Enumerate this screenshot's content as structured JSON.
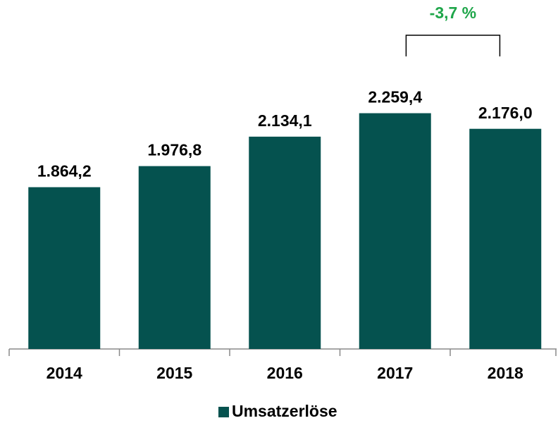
{
  "chart_data": {
    "type": "bar",
    "categories": [
      "2014",
      "2015",
      "2016",
      "2017",
      "2018"
    ],
    "series": [
      {
        "name": "Umsatzerlöse",
        "color": "#05524f",
        "values": [
          1864.2,
          1976.8,
          2134.1,
          2259.4,
          2176.0
        ],
        "value_labels": [
          "1.864,2",
          "1.976,8",
          "2.134,1",
          "2.259,4",
          "2.176,0"
        ]
      }
    ],
    "ylim": [
      1000,
      2800
    ],
    "annotation": "-3,7 %",
    "annotation_color": "#1fa64a"
  }
}
